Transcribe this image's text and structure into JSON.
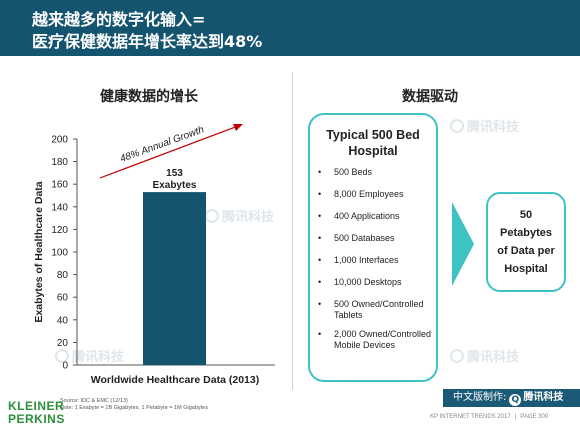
{
  "header": {
    "line1": "越来越多的数字化输入=",
    "line2": "医疗保健数据年增长率达到48%"
  },
  "left_section": {
    "title": "健康数据的增长"
  },
  "right_section": {
    "title": "数据驱动"
  },
  "chart_data": {
    "type": "bar",
    "categories": [
      "Worldwide Healthcare Data (2013)"
    ],
    "values": [
      153
    ],
    "data_label_lines": [
      "153",
      "Exabytes"
    ],
    "ylabel": "Exabytes of Healthcare Data",
    "xlabel": "Worldwide Healthcare Data (2013)",
    "ylim": [
      0,
      200
    ],
    "yticks": [
      0,
      20,
      40,
      60,
      80,
      100,
      120,
      140,
      160,
      180,
      200
    ],
    "annotation": "48% Annual  Growth",
    "grid": false,
    "colors": {
      "bar": "#15546f",
      "arrow": "#c00000"
    }
  },
  "hospital": {
    "title": "Typical 500 Bed Hospital",
    "items": [
      "500 Beds",
      "8,000 Employees",
      "400 Applications",
      "500 Databases",
      "1,000 Interfaces",
      "10,000 Desktops",
      "500 Owned/Controlled Tablets",
      "2,000 Owned/Controlled Mobile Devices"
    ]
  },
  "result": {
    "value": "50",
    "line1": "Petabytes",
    "line2": "of Data per",
    "line3": "Hospital"
  },
  "source": {
    "line1": "Source: IDC & EMC (12/13)",
    "line2": "Note: 1 Exabyte = 1B Gigabytes, 1 Petabyte = 1M Gigabytes"
  },
  "logo": {
    "line1": "KLEINER",
    "line2": "PERKINS"
  },
  "badge": {
    "prefix": "中文版制作:",
    "icon": "tencent-tech-icon",
    "brand": "腾讯科技"
  },
  "footer": {
    "left": "KP INTERNET TRENDS 2017",
    "sep": "|",
    "right": "PAGE 300"
  },
  "watermark": {
    "text": "腾讯科技"
  },
  "colors": {
    "header_bg": "#15546f",
    "accent_teal": "#3ec3c5",
    "kp_green": "#2d8f3c",
    "badge_bg": "#1a5a77"
  }
}
